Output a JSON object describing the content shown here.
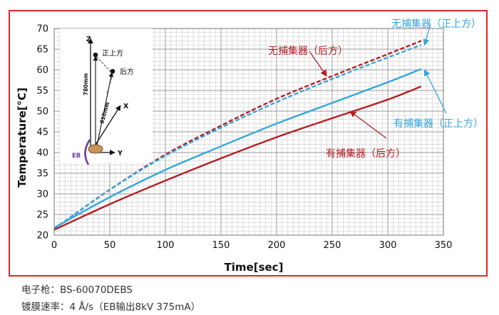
{
  "colors": {
    "frame": "#e0262a",
    "red": "#b41e24",
    "blue": "#33a6dc",
    "purple": "#6a3d9a",
    "grid": "#b4b4b4"
  },
  "chart_data": {
    "type": "line",
    "xlabel": "Time[sec]",
    "ylabel": "Temperature[°C]",
    "xlim": [
      0,
      350
    ],
    "ylim": [
      20,
      70
    ],
    "xticks": [
      "0",
      "50",
      "100",
      "150",
      "200",
      "250",
      "300",
      "350"
    ],
    "yticks": [
      "20",
      "25",
      "30",
      "35",
      "40",
      "45",
      "50",
      "55",
      "60",
      "65",
      "70"
    ],
    "grid": true,
    "series": [
      {
        "name": "无捕集器（后方）",
        "color": "#b41e24",
        "dash": true,
        "x": [
          0,
          50,
          100,
          150,
          200,
          250,
          300,
          330
        ],
        "y": [
          21.5,
          31,
          39.5,
          46.5,
          53,
          58.5,
          63.8,
          67
        ]
      },
      {
        "name": "无捕集器（正上方）",
        "color": "#33a6dc",
        "dash": true,
        "x": [
          0,
          50,
          100,
          150,
          200,
          250,
          300,
          330
        ],
        "y": [
          21.5,
          31,
          39.2,
          46,
          52.2,
          57.8,
          63,
          66
        ]
      },
      {
        "name": "有捕集器（正上方）",
        "color": "#33a6dc",
        "dash": false,
        "x": [
          0,
          50,
          100,
          150,
          200,
          250,
          300,
          330
        ],
        "y": [
          21.8,
          29.2,
          35.8,
          41.5,
          47,
          52,
          57,
          60.2
        ]
      },
      {
        "name": "有捕集器（后方）",
        "color": "#b41e24",
        "dash": false,
        "x": [
          0,
          50,
          100,
          150,
          200,
          250,
          300,
          330
        ],
        "y": [
          21.3,
          27.5,
          33.2,
          38.6,
          43.7,
          48.3,
          52.8,
          56
        ]
      }
    ],
    "annotations": [
      {
        "text": "无捕集器（后方）",
        "color": "#b41e24",
        "target": [
          245,
          58.5
        ]
      },
      {
        "text": "无捕集器（正上方）",
        "color": "#33a6dc",
        "target": [
          333,
          66
        ]
      },
      {
        "text": "有捕集器（正上方）",
        "color": "#33a6dc",
        "target": [
          333,
          60
        ]
      },
      {
        "text": "有捕集器（后方）",
        "color": "#b41e24",
        "target": [
          266,
          50
        ]
      }
    ]
  },
  "inset": {
    "z_label": "Z",
    "x_label": "X",
    "y_label": "Y",
    "top_label": "正上方",
    "back_label": "后方",
    "dist_vertical": "780mm",
    "dist_oblique": "810mm",
    "eb_label": "EB"
  },
  "captions": {
    "line1": "电子枪：BS-60070DEBS",
    "line2": "镀膜速率：4 Å/s（EB输出8kV 375mA）"
  }
}
